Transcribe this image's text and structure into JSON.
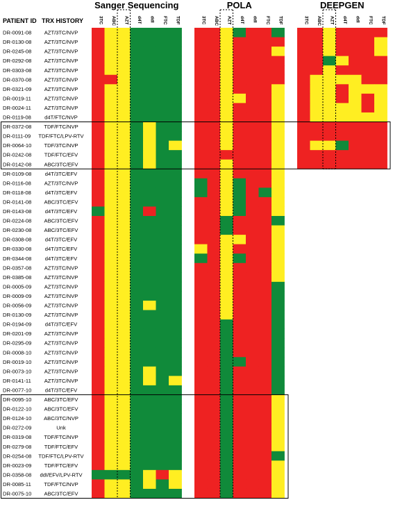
{
  "headers": {
    "patient_id": "PATIENT ID",
    "trx_history": "TRX HISTORY"
  },
  "colors": {
    "red": "#ee2222",
    "yellow": "#ffee22",
    "green": "#108a3a"
  },
  "drugs": [
    "3TC",
    "ABC",
    "AZT",
    "d4T",
    "ddI",
    "FTC",
    "TDF"
  ],
  "panels": [
    {
      "title": "Sanger Sequencing"
    },
    {
      "title": "POLA"
    },
    {
      "title": "DEEPGEN"
    }
  ],
  "patients": [
    {
      "id": "DR-0091-08",
      "trx": "AZT/3TC/NVP",
      "sanger": "RYYGGGG",
      "pola": "RRYGRRG",
      "deepgen": "RRYRRRR"
    },
    {
      "id": "DR-0130-08",
      "trx": "AZT/3TC/NVP",
      "sanger": "RYYGGGG",
      "pola": "RRYRRRR",
      "deepgen": "RRYRRRY"
    },
    {
      "id": "DR-0245-08",
      "trx": "AZT/3TC/NVP",
      "sanger": "RYYGGGG",
      "pola": "RRYRRRY",
      "deepgen": "RRYRRRY"
    },
    {
      "id": "DR-0292-08",
      "trx": "AZT/3TC/NVP",
      "sanger": "RYYGGGG",
      "pola": "RRYRRRR",
      "deepgen": "RRGYRRR"
    },
    {
      "id": "DR-0303-08",
      "trx": "AZT/3TC/NVP",
      "sanger": "RYYGGGG",
      "pola": "RRYRRRR",
      "deepgen": "RRYRRRR"
    },
    {
      "id": "DR-0370-08",
      "trx": "AZT/3TC/NVP",
      "sanger": "RRYGGGG",
      "pola": "RRYRRRR",
      "deepgen": "RYYYYRR"
    },
    {
      "id": "DR-0321-09",
      "trx": "AZT/3TC/NVP",
      "sanger": "RYYGGGG",
      "pola": "RRYRRRY",
      "deepgen": "RYYRYYY"
    },
    {
      "id": "DR-0019-11",
      "trx": "AZT/3TC/NVP",
      "sanger": "RYYGGGG",
      "pola": "RRYYRRY",
      "deepgen": "RYYRYRY"
    },
    {
      "id": "DR-0024-11",
      "trx": "AZT/3TC/NVP",
      "sanger": "RYYGGGG",
      "pola": "RRYRRRY",
      "deepgen": "RYYYYRY"
    },
    {
      "id": "DR-0119-08",
      "trx": "d4T/FTC/NVP",
      "sanger": "RYYGGGG",
      "pola": "RRYRRRY",
      "deepgen": "RYYYYYY"
    },
    {
      "id": "DR-0372-08",
      "trx": "TDF/FTC/NVP",
      "sanger": "RYYGYGG",
      "pola": "RRYRRRY",
      "deepgen": "RRRRRRR"
    },
    {
      "id": "DR-0111-09",
      "trx": "TDF/FTC/LPV-RTV",
      "sanger": "RYYGYGG",
      "pola": "RRYRRRY",
      "deepgen": "RRRRRRR"
    },
    {
      "id": "DR-0064-10",
      "trx": "TDF/3TC/NVP",
      "sanger": "RYYGYGY",
      "pola": "RRYRRRY",
      "deepgen": "RYYGRRR"
    },
    {
      "id": "DR-0242-08",
      "trx": "TDF/FTC/EFV",
      "sanger": "RYYGYGG",
      "pola": "RRRRRRY",
      "deepgen": "RRRRRRR"
    },
    {
      "id": "DR-0142-08",
      "trx": "ABC/3TC/EFV",
      "sanger": "RYYGYGG",
      "pola": "RRYRRRY",
      "deepgen": "RRRRRRR"
    },
    {
      "id": "DR-0109-08",
      "trx": "d4T/3TC/EFV",
      "sanger": "RYYGGGG",
      "pola": "RRYRRRY"
    },
    {
      "id": "DR-0116-08",
      "trx": "AZT/3TC/NVP",
      "sanger": "RYYGGGG",
      "pola": "GRYGRRY"
    },
    {
      "id": "DR-0118-08",
      "trx": "d4T/3TC/EFV",
      "sanger": "RYYGGGG",
      "pola": "GRYGRGY"
    },
    {
      "id": "DR-0141-08",
      "trx": "ABC/3TC/EFV",
      "sanger": "RYYGGGG",
      "pola": "RRYGRRY"
    },
    {
      "id": "DR-0143-08",
      "trx": "d4T/3TC/EFV",
      "sanger": "GYYGRGG",
      "pola": "RRYGRRY"
    },
    {
      "id": "DR-0224-08",
      "trx": "ABC/3TC/EFV",
      "sanger": "RYYGGGG",
      "pola": "RRGRRRG"
    },
    {
      "id": "DR-0230-08",
      "trx": "ABC/3TC/EFV",
      "sanger": "RYYGGGG",
      "pola": "RRGRRRY"
    },
    {
      "id": "DR-0308-08",
      "trx": "d4T/3TC/EFV",
      "sanger": "RYYGGGG",
      "pola": "RRYYRRY"
    },
    {
      "id": "DR-0330-08",
      "trx": "d4T/3TC/EFV",
      "sanger": "RYYGGGG",
      "pola": "YRYRRRY"
    },
    {
      "id": "DR-0344-08",
      "trx": "d4T/3TC/EFV",
      "sanger": "RYYGGGG",
      "pola": "GRYGRRY"
    },
    {
      "id": "DR-0357-08",
      "trx": "AZT/3TC/NVP",
      "sanger": "RYYGGGG",
      "pola": "RRYRRRY"
    },
    {
      "id": "DR-0385-08",
      "trx": "AZT/3TC/NVP",
      "sanger": "RYYGGGG",
      "pola": "RRYRRRY"
    },
    {
      "id": "DR-0005-09",
      "trx": "AZT/3TC/NVP",
      "sanger": "RYYGGGG",
      "pola": "RRYRRRG"
    },
    {
      "id": "DR-0009-09",
      "trx": "AZT/3TC/NVP",
      "sanger": "RYYGGGG",
      "pola": "RRYRRRG"
    },
    {
      "id": "DR-0056-09",
      "trx": "AZT/3TC/NVP",
      "sanger": "RYYGYGG",
      "pola": "RRYRRRG"
    },
    {
      "id": "DR-0130-09",
      "trx": "AZT/3TC/NVP",
      "sanger": "RYYGGGG",
      "pola": "RRYRRRG"
    },
    {
      "id": "DR-0194-09",
      "trx": "d4T/3TC/EFV",
      "sanger": "RYYGGGG",
      "pola": "RRGRRRG"
    },
    {
      "id": "DR-0201-09",
      "trx": "AZT/3TC/NVP",
      "sanger": "RYYGGGG",
      "pola": "RRGRRRG"
    },
    {
      "id": "DR-0295-09",
      "trx": "AZT/3TC/NVP",
      "sanger": "RYYGGGG",
      "pola": "RRGRRRG"
    },
    {
      "id": "DR-0008-10",
      "trx": "AZT/3TC/NVP",
      "sanger": "RYYGGGG",
      "pola": "RRGRRRG"
    },
    {
      "id": "DR-0019-10",
      "trx": "AZT/3TC/NVP",
      "sanger": "RYYGGGG",
      "pola": "RRGGRRG"
    },
    {
      "id": "DR-0073-10",
      "trx": "AZT/3TC/NVP",
      "sanger": "RYYGYGG",
      "pola": "RRGRRRG"
    },
    {
      "id": "DR-0141-11",
      "trx": "AZT/3TC/NVP",
      "sanger": "RYYGYGY",
      "pola": "RRGRRRG"
    },
    {
      "id": "DR-0077-10",
      "trx": "d4T/3TC/EFV",
      "sanger": "RYYGGGG",
      "pola": "RRGRRRG"
    },
    {
      "id": "DR-0095-10",
      "trx": "ABC/3TC/EFV",
      "sanger": "RYYGGGG",
      "pola": "RRGRRRY"
    },
    {
      "id": "DR-0122-10",
      "trx": "ABC/3TC/EFV",
      "sanger": "RYYGGGG",
      "pola": "RRGRRRY"
    },
    {
      "id": "DR-0124-10",
      "trx": "ABC/3TC/NVP",
      "sanger": "RYYGGGG",
      "pola": "RRGRRRY"
    },
    {
      "id": "DR-0272-09",
      "trx": "Unk",
      "sanger": "RYYGGGG",
      "pola": "RRGRRRY"
    },
    {
      "id": "DR-0319-08",
      "trx": "TDF/FTC/NVP",
      "sanger": "RYYGGGG",
      "pola": "RRGRRRY"
    },
    {
      "id": "DR-0279-08",
      "trx": "TDF/FTC/EFV",
      "sanger": "RYYGGGG",
      "pola": "RRGRRRY"
    },
    {
      "id": "DR-0254-08",
      "trx": "TDF/FTC/LPV-RTV",
      "sanger": "RYYGGGG",
      "pola": "RRGRRRG"
    },
    {
      "id": "DR-0023-09",
      "trx": "TDF/FTC/EFV",
      "sanger": "RYYGGGG",
      "pola": "RRGRRRY"
    },
    {
      "id": "DR-0358-08",
      "trx": "ddI/EFV/LPV-RTV",
      "sanger": "GGGGYRY",
      "pola": "RRGRRRY"
    },
    {
      "id": "DR-0085-11",
      "trx": "TDF/FTC/NVP",
      "sanger": "RYYGYGY",
      "pola": "RRGRRRY"
    },
    {
      "id": "DR-0075-10",
      "trx": "ABC/3TC/EFV",
      "sanger": "RYYGGGG",
      "pola": "RRGRRRY"
    }
  ],
  "boxed_row_groups": [
    [
      10,
      14
    ],
    [
      39,
      49
    ]
  ]
}
